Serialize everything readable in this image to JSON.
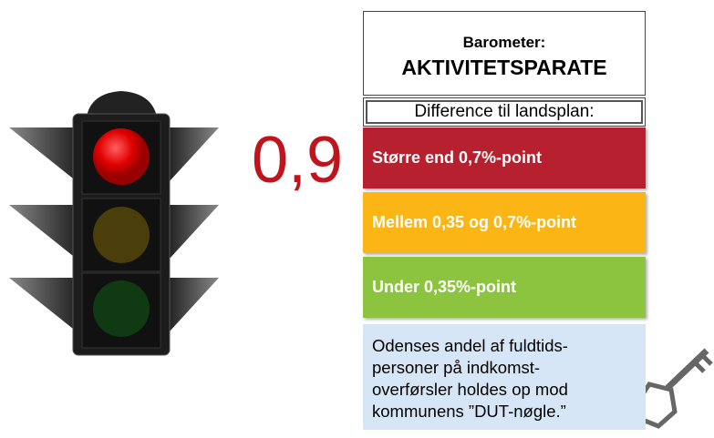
{
  "header": {
    "title": "Barometer:",
    "subtitle": "AKTIVITETSPARATE"
  },
  "value": "0,9",
  "difference_label": "Difference til landsplan:",
  "levels": [
    {
      "label": "Større end 0,7%-point"
    },
    {
      "label": "Mellem 0,35 og 0,7%-point"
    },
    {
      "label": "Under 0,35%-point"
    }
  ],
  "note": {
    "lines": [
      "Odenses andel af fuldtids-",
      "personer på indkomst-",
      "overførsler holdes op mod",
      "kommunens ”DUT-nøgle.”"
    ]
  }
}
